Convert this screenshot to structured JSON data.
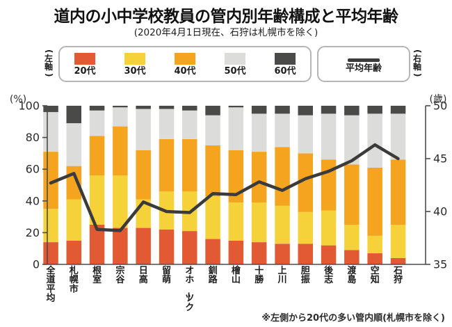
{
  "header": {
    "title": "道内の小中学校教員の管内別年齢構成と平均年齢",
    "subtitle": "(2020年4月1日現在、石狩は札幌市を除く)"
  },
  "legend": {
    "left_axis_label": "(左軸)",
    "right_axis_label": "(右軸)",
    "items": [
      {
        "label": "20代",
        "color": "#e15a33"
      },
      {
        "label": "30代",
        "color": "#f6d23a"
      },
      {
        "label": "40代",
        "color": "#f5a41f"
      },
      {
        "label": "50代",
        "color": "#dcdcda"
      },
      {
        "label": "60代",
        "color": "#4a4a48"
      }
    ],
    "line_item": {
      "label": "平均年齢",
      "color": "#3b3b3b"
    }
  },
  "footnote": "※左側から20代の多い管内順(札幌市を除く)",
  "chart_data": {
    "type": "stacked-bar+line",
    "categories": [
      "全道平均",
      "札幌市",
      "根室",
      "宗谷",
      "日高",
      "留萌",
      "オホーツク",
      "釧路",
      "檜山",
      "十勝",
      "上川",
      "胆振",
      "後志",
      "渡島",
      "空知",
      "石狩"
    ],
    "series": [
      {
        "name": "20代",
        "axis": "left",
        "color": "#e15a33",
        "values": [
          14,
          15,
          25,
          23,
          23,
          22,
          21,
          16,
          15,
          14,
          13,
          13,
          12,
          9,
          7,
          4
        ]
      },
      {
        "name": "30代",
        "axis": "left",
        "color": "#f6d23a",
        "values": [
          21,
          26,
          31,
          33,
          18,
          24,
          25,
          27,
          24,
          25,
          24,
          20,
          22,
          16,
          11,
          21
        ]
      },
      {
        "name": "40代",
        "axis": "left",
        "color": "#f5a41f",
        "values": [
          36,
          21,
          25,
          31,
          31,
          33,
          33,
          32,
          33,
          32,
          37,
          37,
          32,
          38,
          43,
          41
        ]
      },
      {
        "name": "50代",
        "axis": "left",
        "color": "#dcdcda",
        "values": [
          25,
          27,
          16,
          12,
          26,
          19,
          18,
          19,
          27,
          24,
          21,
          24,
          29,
          31,
          34,
          29
        ]
      },
      {
        "name": "60代",
        "axis": "left",
        "color": "#4a4a48",
        "values": [
          4,
          11,
          3,
          1,
          2,
          2,
          3,
          6,
          1,
          5,
          5,
          6,
          5,
          6,
          5,
          5
        ]
      }
    ],
    "line_series": {
      "name": "平均年齢",
      "axis": "right",
      "color": "#3b3b3b",
      "values": [
        42.7,
        43.6,
        38.3,
        38.2,
        40.9,
        40.0,
        39.9,
        41.7,
        41.6,
        42.8,
        42.0,
        43.1,
        43.8,
        44.8,
        46.3,
        45.0
      ]
    },
    "left_axis": {
      "unit": "(%)",
      "min": 0,
      "max": 100,
      "ticks": [
        0,
        20,
        40,
        60,
        80,
        100
      ]
    },
    "right_axis": {
      "unit": "(歳)",
      "min": 35,
      "max": 50,
      "ticks": [
        35,
        40,
        45,
        50
      ]
    },
    "grid": false,
    "legend_position": "top"
  }
}
